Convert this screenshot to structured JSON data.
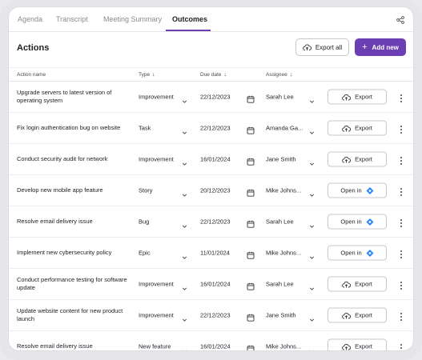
{
  "tabs": [
    {
      "label": "Agenda"
    },
    {
      "label": "Transcript"
    },
    {
      "label": "Meeting Summary"
    },
    {
      "label": "Outcomes"
    }
  ],
  "header": {
    "title": "Actions",
    "export_all": "Export all",
    "add_new": "Add new"
  },
  "columns": {
    "name": "Action name",
    "type": "Type",
    "due": "Due date",
    "assignee": "Assignee"
  },
  "rows": [
    {
      "name": "Upgrade servers to latest version of operating system",
      "type": "Improvement",
      "due": "22/12/2023",
      "assignee": "Sarah Lee",
      "action": "Export"
    },
    {
      "name": "Fix login authentication bug on website",
      "type": "Task",
      "due": "22/12/2023",
      "assignee": "Amanda Ga...",
      "action": "Export"
    },
    {
      "name": "Conduct security audit for network",
      "type": "Improvement",
      "due": "16/01/2024",
      "assignee": "Jane Smith",
      "action": "Export"
    },
    {
      "name": "Develop new mobile app feature",
      "type": "Story",
      "due": "20/12/2023",
      "assignee": "Mike Johns...",
      "action": "Open in"
    },
    {
      "name": "Resolve email delivery issue",
      "type": "Bug",
      "due": "22/12/2023",
      "assignee": "Sarah Lee",
      "action": "Open in"
    },
    {
      "name": "Implement new cybersecurity policy",
      "type": "Epic",
      "due": "11/01/2024",
      "assignee": "Mike Johns...",
      "action": "Open in"
    },
    {
      "name": "Conduct performance testing for software update",
      "type": "Improvement",
      "due": "16/01/2024",
      "assignee": "Sarah Lee",
      "action": "Export"
    },
    {
      "name": "Update website content for new product launch",
      "type": "Improvement",
      "due": "22/12/2023",
      "assignee": "Jane Smith",
      "action": "Export"
    },
    {
      "name": "Resolve email delivery issue",
      "type": "New feature",
      "due": "16/01/2024",
      "assignee": "Mike Johns...",
      "action": "Export"
    }
  ],
  "colors": {
    "accent": "#6b3fb3",
    "jira": "#2684ff"
  }
}
